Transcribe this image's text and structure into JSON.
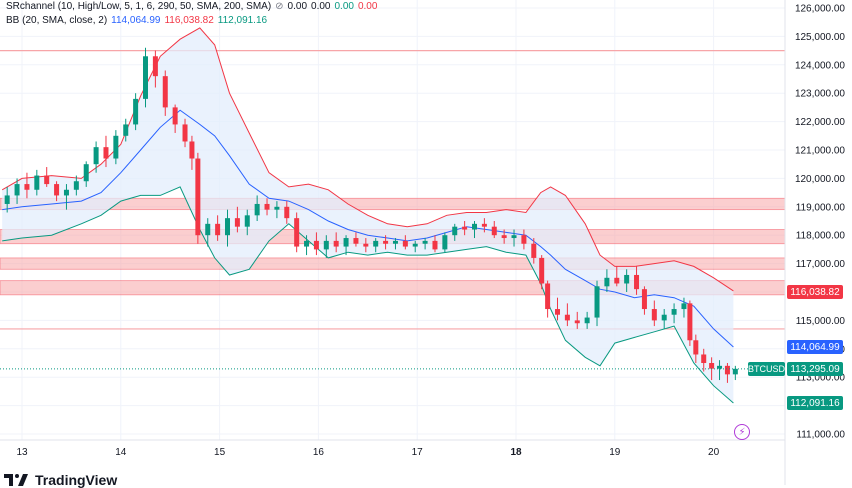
{
  "legend": {
    "sr_label": "SRchannel (10, High/Low, 5, 1, 6, 290, 50, SMA, 200, SMA)",
    "sr_values": [
      "0.00",
      "0.00",
      "0.00",
      "0.00"
    ],
    "bb_label": "BB (20, SMA, close, 2)",
    "bb_basis": "114,064.99",
    "bb_upper": "116,038.82",
    "bb_lower": "112,091.16"
  },
  "tags": {
    "upper": "116,038.82",
    "basis": "114,064.99",
    "symbol": "BTCUSD",
    "price": "113,295.09",
    "lower": "112,091.16"
  },
  "brand": "TradingView",
  "colors": {
    "up": "#089981",
    "down": "#f23645",
    "basis": "#2962ff",
    "upper": "#f23645",
    "lower": "#089981",
    "zone": "#f7a5a8",
    "band_fill": "#e3eefc"
  },
  "chart_data": {
    "type": "candlestick",
    "symbol": "BTCUSD",
    "y_ticks": [
      111000,
      112000,
      113000,
      114000,
      115000,
      116000,
      117000,
      118000,
      119000,
      120000,
      121000,
      122000,
      123000,
      124000,
      125000,
      126000
    ],
    "y_tick_labels": [
      "111,000.00",
      "113,000.00",
      "114,000.00",
      "115,000.00",
      "117,000.00",
      "118,000.00",
      "119,000.00",
      "120,000.00",
      "121,000.00",
      "122,000.00",
      "123,000.00",
      "124,000.00",
      "125,000.00",
      "126,000.00"
    ],
    "x_labels": [
      "13",
      "14",
      "15",
      "16",
      "17",
      "18",
      "19",
      "20"
    ],
    "x_label_positions_day": [
      13,
      14,
      15,
      16,
      17,
      18,
      19,
      20
    ],
    "sr_zones": [
      [
        118900,
        119300
      ],
      [
        117700,
        118200
      ],
      [
        116800,
        117200
      ],
      [
        115900,
        116400
      ]
    ],
    "sr_lines": [
      124500,
      114700
    ],
    "last_price": 113295.09,
    "bb_upper": [
      [
        12.8,
        119600
      ],
      [
        13.0,
        120000
      ],
      [
        13.3,
        120100
      ],
      [
        13.6,
        120000
      ],
      [
        13.8,
        120500
      ],
      [
        14.0,
        121200
      ],
      [
        14.2,
        122900
      ],
      [
        14.4,
        124300
      ],
      [
        14.6,
        124900
      ],
      [
        14.8,
        125300
      ],
      [
        14.95,
        124700
      ],
      [
        15.1,
        123000
      ],
      [
        15.3,
        121600
      ],
      [
        15.5,
        120200
      ],
      [
        15.7,
        119700
      ],
      [
        15.9,
        119800
      ],
      [
        16.1,
        119600
      ],
      [
        16.3,
        119100
      ],
      [
        16.5,
        118700
      ],
      [
        16.7,
        118400
      ],
      [
        16.9,
        118300
      ],
      [
        17.1,
        118400
      ],
      [
        17.3,
        118700
      ],
      [
        17.5,
        118800
      ],
      [
        17.7,
        118800
      ],
      [
        17.9,
        118900
      ],
      [
        18.1,
        118800
      ],
      [
        18.25,
        119500
      ],
      [
        18.35,
        119700
      ],
      [
        18.5,
        119400
      ],
      [
        18.7,
        118400
      ],
      [
        18.85,
        117300
      ],
      [
        19.0,
        116900
      ],
      [
        19.2,
        116900
      ],
      [
        19.4,
        117000
      ],
      [
        19.6,
        117100
      ],
      [
        19.8,
        116900
      ],
      [
        20.0,
        116500
      ],
      [
        20.2,
        116038.82
      ]
    ],
    "bb_basis": [
      [
        12.8,
        118900
      ],
      [
        13.0,
        119000
      ],
      [
        13.3,
        119100
      ],
      [
        13.6,
        119200
      ],
      [
        13.8,
        119500
      ],
      [
        14.0,
        120200
      ],
      [
        14.2,
        121000
      ],
      [
        14.4,
        121800
      ],
      [
        14.6,
        122400
      ],
      [
        14.8,
        121900
      ],
      [
        14.95,
        121500
      ],
      [
        15.1,
        120800
      ],
      [
        15.3,
        119800
      ],
      [
        15.5,
        119300
      ],
      [
        15.7,
        119200
      ],
      [
        15.9,
        118900
      ],
      [
        16.1,
        118500
      ],
      [
        16.3,
        118200
      ],
      [
        16.5,
        118000
      ],
      [
        16.7,
        117900
      ],
      [
        16.9,
        117800
      ],
      [
        17.1,
        117900
      ],
      [
        17.3,
        118100
      ],
      [
        17.5,
        118300
      ],
      [
        17.7,
        118200
      ],
      [
        17.9,
        118100
      ],
      [
        18.1,
        118000
      ],
      [
        18.25,
        117600
      ],
      [
        18.35,
        117300
      ],
      [
        18.5,
        116800
      ],
      [
        18.7,
        116400
      ],
      [
        18.85,
        116100
      ],
      [
        19.0,
        116000
      ],
      [
        19.2,
        115800
      ],
      [
        19.4,
        115900
      ],
      [
        19.6,
        115800
      ],
      [
        19.8,
        115500
      ],
      [
        20.0,
        114700
      ],
      [
        20.2,
        114064.99
      ]
    ],
    "bb_lower": [
      [
        12.8,
        117800
      ],
      [
        13.0,
        117900
      ],
      [
        13.3,
        118000
      ],
      [
        13.6,
        118400
      ],
      [
        13.8,
        118700
      ],
      [
        14.0,
        119200
      ],
      [
        14.2,
        119400
      ],
      [
        14.4,
        119400
      ],
      [
        14.6,
        119700
      ],
      [
        14.8,
        118200
      ],
      [
        14.95,
        117200
      ],
      [
        15.1,
        116600
      ],
      [
        15.3,
        116800
      ],
      [
        15.5,
        117800
      ],
      [
        15.7,
        118400
      ],
      [
        15.9,
        117800
      ],
      [
        16.1,
        117200
      ],
      [
        16.3,
        117400
      ],
      [
        16.5,
        117300
      ],
      [
        16.7,
        117400
      ],
      [
        16.9,
        117300
      ],
      [
        17.1,
        117300
      ],
      [
        17.3,
        117400
      ],
      [
        17.5,
        117500
      ],
      [
        17.7,
        117600
      ],
      [
        17.9,
        117400
      ],
      [
        18.1,
        117300
      ],
      [
        18.25,
        116300
      ],
      [
        18.35,
        115400
      ],
      [
        18.5,
        114300
      ],
      [
        18.7,
        113700
      ],
      [
        18.85,
        113400
      ],
      [
        19.0,
        114200
      ],
      [
        19.2,
        114400
      ],
      [
        19.4,
        114600
      ],
      [
        19.6,
        114800
      ],
      [
        19.8,
        113500
      ],
      [
        20.0,
        112700
      ],
      [
        20.2,
        112091.16
      ]
    ],
    "candles": [
      [
        12.85,
        119100,
        119700,
        118800,
        119400
      ],
      [
        12.95,
        119400,
        120000,
        119100,
        119800
      ],
      [
        13.05,
        119800,
        120200,
        119300,
        119600
      ],
      [
        13.15,
        119600,
        120300,
        119400,
        120100
      ],
      [
        13.25,
        120100,
        120400,
        119700,
        119800
      ],
      [
        13.35,
        119800,
        119900,
        119200,
        119400
      ],
      [
        13.45,
        119400,
        119800,
        118900,
        119600
      ],
      [
        13.55,
        119600,
        120100,
        119400,
        119900
      ],
      [
        13.65,
        119900,
        120600,
        119700,
        120500
      ],
      [
        13.75,
        120500,
        121300,
        120200,
        121100
      ],
      [
        13.85,
        121100,
        121500,
        120400,
        120700
      ],
      [
        13.95,
        120700,
        121700,
        120500,
        121500
      ],
      [
        14.05,
        121500,
        122100,
        121300,
        121900
      ],
      [
        14.15,
        121900,
        123000,
        121700,
        122800
      ],
      [
        14.25,
        122800,
        124600,
        122500,
        124300
      ],
      [
        14.35,
        124300,
        124500,
        123200,
        123600
      ],
      [
        14.45,
        123600,
        123800,
        122200,
        122500
      ],
      [
        14.55,
        122500,
        122600,
        121600,
        121900
      ],
      [
        14.65,
        121900,
        122100,
        121100,
        121300
      ],
      [
        14.72,
        121300,
        121500,
        120300,
        120700
      ],
      [
        14.78,
        120700,
        120900,
        117700,
        118000
      ],
      [
        14.88,
        118000,
        118600,
        117600,
        118400
      ],
      [
        14.98,
        118400,
        118700,
        117800,
        118000
      ],
      [
        15.08,
        118000,
        118900,
        117600,
        118600
      ],
      [
        15.18,
        118600,
        119000,
        118100,
        118300
      ],
      [
        15.28,
        118300,
        118900,
        118000,
        118700
      ],
      [
        15.38,
        118700,
        119400,
        118500,
        119100
      ],
      [
        15.48,
        119100,
        119300,
        118700,
        118900
      ],
      [
        15.58,
        118900,
        119200,
        118600,
        119000
      ],
      [
        15.68,
        119000,
        119200,
        118400,
        118600
      ],
      [
        15.78,
        118600,
        118800,
        117400,
        117600
      ],
      [
        15.88,
        117600,
        118000,
        117300,
        117800
      ],
      [
        15.98,
        117800,
        118100,
        117300,
        117500
      ],
      [
        16.08,
        117500,
        118000,
        117200,
        117800
      ],
      [
        16.18,
        117800,
        118100,
        117400,
        117600
      ],
      [
        16.28,
        117600,
        118000,
        117300,
        117900
      ],
      [
        16.38,
        117900,
        118100,
        117600,
        117700
      ],
      [
        16.48,
        117700,
        117900,
        117400,
        117600
      ],
      [
        16.58,
        117600,
        117900,
        117400,
        117800
      ],
      [
        16.68,
        117800,
        118000,
        117500,
        117700
      ],
      [
        16.78,
        117700,
        117900,
        117500,
        117800
      ],
      [
        16.88,
        117800,
        118000,
        117500,
        117600
      ],
      [
        16.98,
        117600,
        117800,
        117400,
        117700
      ],
      [
        17.08,
        117700,
        117900,
        117500,
        117800
      ],
      [
        17.18,
        117800,
        118000,
        117400,
        117500
      ],
      [
        17.28,
        117500,
        118100,
        117400,
        118000
      ],
      [
        17.38,
        118000,
        118400,
        117800,
        118300
      ],
      [
        17.48,
        118300,
        118500,
        118000,
        118200
      ],
      [
        17.58,
        118200,
        118500,
        117900,
        118400
      ],
      [
        17.68,
        118400,
        118600,
        118100,
        118300
      ],
      [
        17.78,
        118300,
        118500,
        117900,
        118000
      ],
      [
        17.88,
        118000,
        118200,
        117700,
        117900
      ],
      [
        17.98,
        117900,
        118200,
        117600,
        118000
      ],
      [
        18.08,
        118000,
        118200,
        117500,
        117700
      ],
      [
        18.18,
        117700,
        117900,
        117000,
        117200
      ],
      [
        18.26,
        117200,
        117300,
        116100,
        116300
      ],
      [
        18.32,
        116300,
        116400,
        115100,
        115400
      ],
      [
        18.42,
        115400,
        115800,
        115000,
        115200
      ],
      [
        18.52,
        115200,
        115600,
        114800,
        115000
      ],
      [
        18.62,
        115000,
        115300,
        114700,
        114900
      ],
      [
        18.72,
        114900,
        115300,
        114700,
        115100
      ],
      [
        18.82,
        115100,
        116400,
        114800,
        116200
      ],
      [
        18.92,
        116200,
        116800,
        116000,
        116500
      ],
      [
        19.02,
        116500,
        116900,
        116200,
        116300
      ],
      [
        19.12,
        116300,
        116800,
        116000,
        116600
      ],
      [
        19.22,
        116600,
        116900,
        115900,
        116100
      ],
      [
        19.3,
        116100,
        116200,
        115200,
        115400
      ],
      [
        19.4,
        115400,
        115700,
        114800,
        115000
      ],
      [
        19.5,
        115000,
        115400,
        114700,
        115200
      ],
      [
        19.6,
        115200,
        115600,
        114900,
        115400
      ],
      [
        19.7,
        115400,
        115800,
        115100,
        115600
      ],
      [
        19.76,
        115600,
        115700,
        114100,
        114300
      ],
      [
        19.82,
        114300,
        114500,
        113500,
        113800
      ],
      [
        19.9,
        113800,
        114000,
        113200,
        113500
      ],
      [
        19.98,
        113500,
        113700,
        112900,
        113300
      ],
      [
        20.06,
        113300,
        113600,
        112900,
        113400
      ],
      [
        20.14,
        113400,
        113500,
        112800,
        113100
      ],
      [
        20.22,
        113100,
        113400,
        112900,
        113295
      ]
    ]
  }
}
